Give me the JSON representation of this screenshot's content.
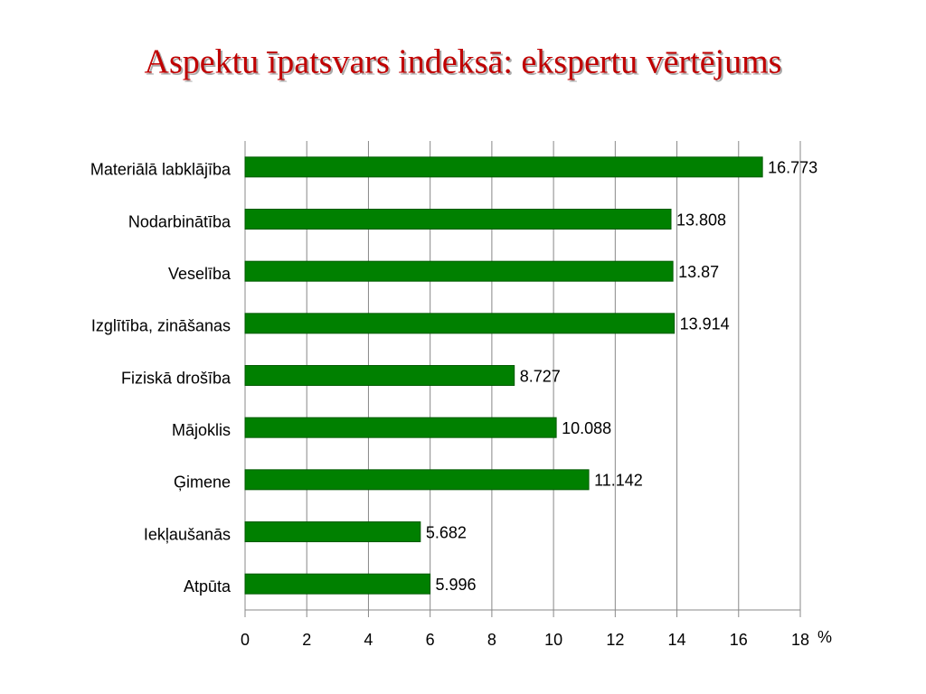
{
  "chart_data": {
    "type": "bar",
    "orientation": "horizontal",
    "title": "Aspektu īpatsvars indeksā: ekspertu vērtējums",
    "x_label": "%",
    "categories": [
      "Materiālā labklājība",
      "Nodarbinātība",
      "Veselība",
      "Izglītība, zināšanas",
      "Fiziskā drošība",
      "Mājoklis",
      "Ģimene",
      "Iekļaušanās",
      "Atpūta"
    ],
    "values": [
      16.773,
      13.808,
      13.87,
      13.914,
      8.727,
      10.088,
      11.142,
      5.682,
      5.996
    ],
    "color": "#008000",
    "xlim": [
      0,
      18
    ],
    "xticks": [
      0,
      2,
      4,
      6,
      8,
      10,
      12,
      14,
      16,
      18
    ],
    "grid": true
  }
}
